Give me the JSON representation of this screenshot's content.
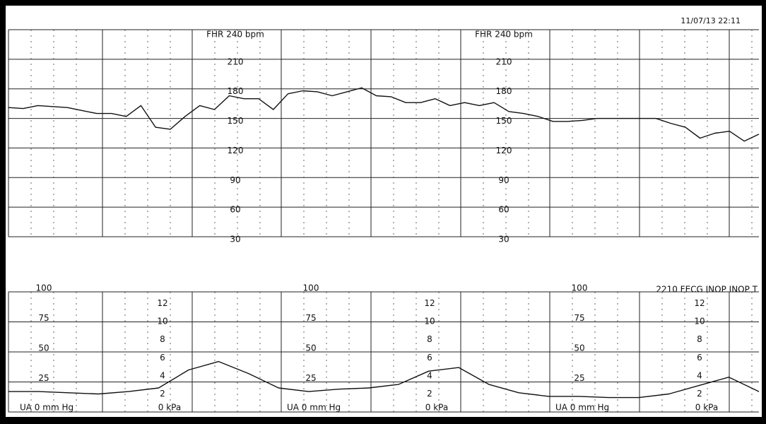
{
  "timestamp": "11/07/13 22:11",
  "status": "2210  FECG  INOP  INOP  T",
  "chart_data": [
    {
      "type": "line",
      "color": "#111111",
      "x": [
        0,
        1,
        2,
        3,
        4,
        5,
        6,
        7,
        8,
        9,
        10,
        11,
        12,
        13,
        14,
        15,
        16,
        17,
        18,
        19,
        20,
        21,
        22,
        23,
        24,
        25,
        26,
        27,
        28,
        29,
        30,
        31,
        32,
        33,
        34,
        35,
        36,
        37,
        38,
        39,
        40,
        41,
        42,
        43,
        44,
        45,
        46,
        47,
        48,
        49,
        50,
        51
      ],
      "values": [
        161,
        160,
        163,
        162,
        161,
        158,
        155,
        155,
        152,
        163,
        141,
        139,
        152,
        163,
        159,
        173,
        170,
        170,
        159,
        175,
        178,
        177,
        173,
        177,
        181,
        173,
        172,
        166,
        166,
        170,
        163,
        166,
        163,
        166,
        157,
        155,
        152,
        147,
        147,
        148,
        150,
        150,
        150,
        150,
        150,
        145,
        141,
        130,
        135,
        137,
        127,
        134
      ],
      "xlim": [
        0,
        51
      ],
      "ylim": [
        30,
        240
      ],
      "yticks": [
        30,
        60,
        90,
        120,
        150,
        180,
        210,
        {
          "value": 240,
          "label": "FHR 240 bpm"
        }
      ],
      "grid": true
    },
    {
      "type": "line",
      "color": "#111111",
      "x": [
        0,
        1,
        2,
        3,
        4,
        5,
        6,
        7,
        8,
        9,
        10,
        11,
        12,
        13,
        14,
        15,
        16,
        17,
        18,
        19,
        20,
        21,
        22,
        23,
        24,
        25
      ],
      "values": [
        17,
        17,
        16,
        15,
        17,
        20,
        35,
        42,
        32,
        20,
        17,
        19,
        20,
        23,
        34,
        37,
        23,
        16,
        13,
        13,
        12,
        12,
        15,
        22,
        29,
        17
      ],
      "xlim": [
        0,
        25
      ],
      "ylim": [
        0,
        100
      ],
      "yticks": [
        {
          "value": 0,
          "label": "UA   0   mm Hg"
        },
        25,
        50,
        75,
        100
      ],
      "y2lim": [
        0,
        13.3
      ],
      "y2ticks": [
        {
          "value": 0,
          "label": "0 kPa"
        },
        2,
        4,
        6,
        8,
        10,
        12
      ],
      "grid": true
    }
  ]
}
